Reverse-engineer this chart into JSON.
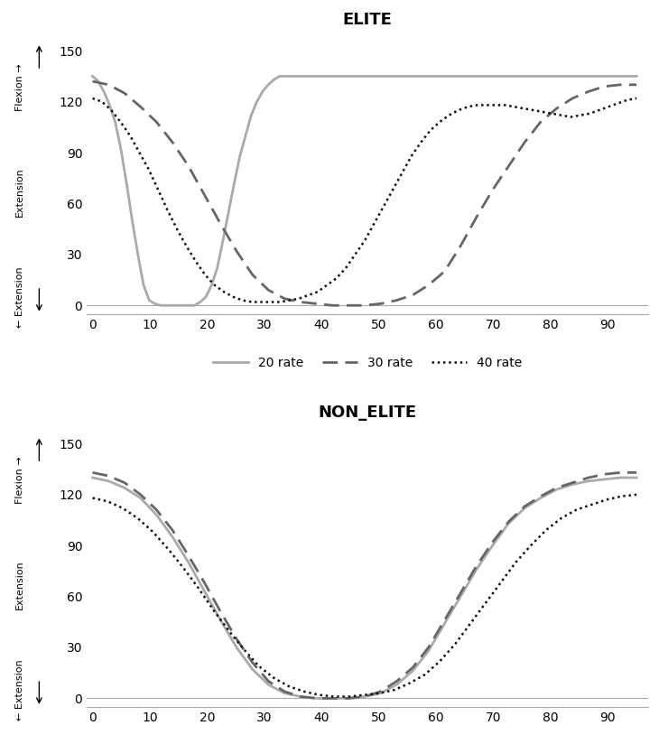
{
  "elite": {
    "title": "ELITE",
    "rate20": [
      135,
      132,
      126,
      118,
      108,
      92,
      72,
      50,
      30,
      12,
      3,
      1,
      0,
      0,
      0,
      0,
      0,
      0,
      0,
      2,
      5,
      12,
      22,
      38,
      55,
      72,
      88,
      100,
      112,
      120,
      126,
      130,
      133,
      135,
      135,
      135,
      135,
      135,
      135,
      135,
      135,
      135,
      135,
      135,
      135,
      135,
      135,
      135,
      135,
      135,
      135,
      135,
      135,
      135,
      135,
      135,
      135,
      135,
      135,
      135,
      135,
      135,
      135,
      135,
      135,
      135,
      135,
      135,
      135,
      135,
      135,
      135,
      135,
      135,
      135,
      135,
      135,
      135,
      135,
      135,
      135,
      135,
      135,
      135,
      135,
      135,
      135,
      135,
      135,
      135,
      135,
      135,
      135,
      135,
      135,
      135,
      135
    ],
    "rate30": [
      132,
      130,
      125,
      117,
      108,
      96,
      82,
      65,
      48,
      32,
      18,
      9,
      4,
      2,
      1,
      0,
      0,
      0,
      1,
      3,
      6,
      12,
      20,
      35,
      52,
      68,
      82,
      96,
      108,
      116,
      122,
      126,
      129,
      130,
      130
    ],
    "rate40": [
      122,
      120,
      115,
      108,
      100,
      90,
      80,
      68,
      56,
      45,
      35,
      26,
      18,
      12,
      8,
      5,
      3,
      2,
      2,
      2,
      2,
      3,
      4,
      6,
      8,
      12,
      16,
      22,
      30,
      38,
      48,
      58,
      68,
      78,
      88,
      96,
      103,
      108,
      112,
      115,
      117,
      118,
      118,
      118,
      118,
      117,
      116,
      115,
      114,
      113,
      112,
      111,
      112,
      113,
      115,
      117,
      119,
      121,
      122
    ]
  },
  "non_elite": {
    "title": "NON_ELITE",
    "rate20": [
      130,
      128,
      124,
      118,
      108,
      95,
      80,
      63,
      46,
      30,
      17,
      8,
      3,
      1,
      0,
      0,
      0,
      1,
      3,
      8,
      16,
      28,
      44,
      60,
      76,
      90,
      103,
      112,
      118,
      123,
      126,
      128,
      129,
      130,
      130
    ],
    "rate30": [
      133,
      131,
      127,
      120,
      111,
      99,
      84,
      68,
      51,
      35,
      21,
      10,
      4,
      1,
      0,
      0,
      0,
      1,
      4,
      10,
      18,
      30,
      46,
      62,
      78,
      92,
      104,
      113,
      119,
      124,
      127,
      130,
      132,
      133,
      133
    ],
    "rate40": [
      118,
      116,
      112,
      106,
      98,
      88,
      77,
      65,
      52,
      40,
      29,
      19,
      12,
      7,
      4,
      2,
      1,
      1,
      2,
      3,
      5,
      9,
      14,
      22,
      32,
      44,
      56,
      68,
      80,
      90,
      99,
      106,
      111,
      114,
      117,
      119,
      120
    ]
  },
  "x_ticks": [
    0,
    10,
    20,
    30,
    40,
    50,
    60,
    70,
    80,
    90
  ],
  "y_ticks": [
    0,
    30,
    60,
    90,
    120,
    150
  ],
  "ylim": [
    -5,
    158
  ],
  "xlim": [
    -1,
    97
  ],
  "color_20": "#aaaaaa",
  "color_30": "#666666",
  "color_40": "#111111",
  "lw_20": 2.0,
  "lw_30": 2.0,
  "lw_40": 1.8,
  "legend_labels": [
    "20 rate",
    "30 rate",
    "40 rate"
  ]
}
